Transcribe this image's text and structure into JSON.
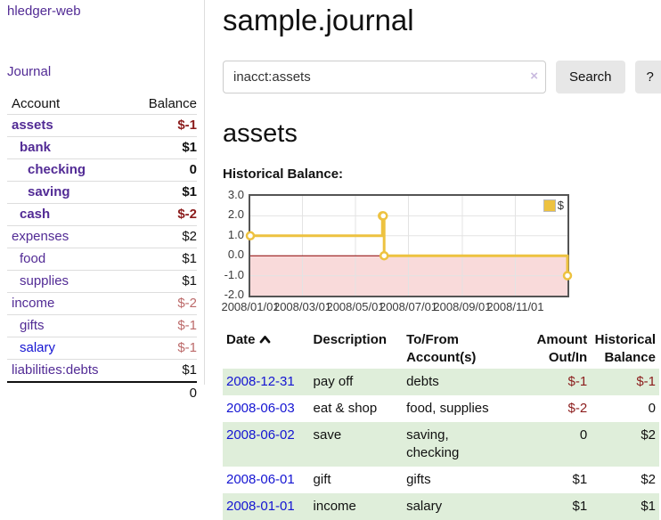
{
  "app": {
    "title": "hledger-web"
  },
  "sidebar": {
    "journal_link_label": "Journal",
    "accounts": {
      "header_account": "Account",
      "header_balance": "Balance",
      "rows": [
        {
          "name": "assets",
          "balance": "$-1",
          "depth": 1,
          "bold": true,
          "name_color": "purple",
          "balance_tone": "neg-strong"
        },
        {
          "name": "bank",
          "balance": "$1",
          "depth": 2,
          "bold": true,
          "name_color": "purple",
          "balance_tone": "normal"
        },
        {
          "name": "checking",
          "balance": "0",
          "depth": 3,
          "bold": true,
          "name_color": "purple",
          "balance_tone": "normal"
        },
        {
          "name": "saving",
          "balance": "$1",
          "depth": 3,
          "bold": true,
          "name_color": "purple",
          "balance_tone": "normal"
        },
        {
          "name": "cash",
          "balance": "$-2",
          "depth": 2,
          "bold": true,
          "name_color": "purple",
          "balance_tone": "neg-strong"
        },
        {
          "name": "expenses",
          "balance": "$2",
          "depth": 1,
          "bold": false,
          "name_color": "purple",
          "balance_tone": "normal"
        },
        {
          "name": "food",
          "balance": "$1",
          "depth": 2,
          "bold": false,
          "name_color": "purple",
          "balance_tone": "normal"
        },
        {
          "name": "supplies",
          "balance": "$1",
          "depth": 2,
          "bold": false,
          "name_color": "purple",
          "balance_tone": "normal"
        },
        {
          "name": "income",
          "balance": "$-2",
          "depth": 1,
          "bold": false,
          "name_color": "purple",
          "balance_tone": "neg-soft"
        },
        {
          "name": "gifts",
          "balance": "$-1",
          "depth": 2,
          "bold": false,
          "name_color": "purple",
          "balance_tone": "neg-soft"
        },
        {
          "name": "salary",
          "balance": "$-1",
          "depth": 2,
          "bold": false,
          "name_color": "blue",
          "balance_tone": "neg-soft"
        },
        {
          "name": "liabilities:debts",
          "balance": "$1",
          "depth": 1,
          "bold": false,
          "name_color": "purple",
          "balance_tone": "normal"
        }
      ],
      "total": "0"
    }
  },
  "main": {
    "title": "sample.journal",
    "search": {
      "value": "inacct:assets",
      "clear_icon": "×",
      "button_label": "Search",
      "help_label": "?"
    },
    "account_heading": "assets",
    "chart_label": "Historical Balance:"
  },
  "chart_data": {
    "type": "line",
    "line_style": "step",
    "title": "Historical Balance:",
    "series": [
      {
        "name": "$",
        "color": "#EDC240",
        "points": [
          [
            "2008-01-01",
            1
          ],
          [
            "2008-06-01",
            2
          ],
          [
            "2008-06-02",
            2
          ],
          [
            "2008-06-03",
            0
          ],
          [
            "2008-12-31",
            -1
          ]
        ]
      }
    ],
    "x_ticks": [
      {
        "date": "2008-01-01",
        "label": "2008/01/01"
      },
      {
        "date": "2008-03-01",
        "label": "2008/03/01"
      },
      {
        "date": "2008-05-01",
        "label": "2008/05/01"
      },
      {
        "date": "2008-07-01",
        "label": "2008/07/01"
      },
      {
        "date": "2008-09-01",
        "label": "2008/09/01"
      },
      {
        "date": "2008-11-01",
        "label": "2008/11/01"
      }
    ],
    "y_ticks": [
      {
        "value": 3,
        "label": "3.0"
      },
      {
        "value": 2,
        "label": "2.0"
      },
      {
        "value": 1,
        "label": "1.0"
      },
      {
        "value": 0,
        "label": "0.0"
      },
      {
        "value": -1,
        "label": "-1.0"
      },
      {
        "value": -2,
        "label": "-2.0"
      }
    ],
    "ylim": [
      -2,
      3
    ],
    "grid": true,
    "legend_position": "top-right",
    "legend_label": "$"
  },
  "register": {
    "columns": [
      {
        "label": "Date",
        "align": "left",
        "sort": "asc"
      },
      {
        "label": "Description",
        "align": "left"
      },
      {
        "label": "To/From\nAccount(s)",
        "align": "left"
      },
      {
        "label": "Amount\nOut/In",
        "align": "right"
      },
      {
        "label": "Historical\nBalance",
        "align": "right"
      }
    ],
    "rows": [
      {
        "date": "2008-12-31",
        "description": "pay off",
        "accounts": "debts",
        "amount": "$-1",
        "amount_negative": true,
        "balance": "$-1",
        "balance_negative": true
      },
      {
        "date": "2008-06-03",
        "description": "eat & shop",
        "accounts": "food, supplies",
        "amount": "$-2",
        "amount_negative": true,
        "balance": "0",
        "balance_negative": false
      },
      {
        "date": "2008-06-02",
        "description": "save",
        "accounts": "saving,\nchecking",
        "amount": "0",
        "amount_negative": false,
        "balance": "$2",
        "balance_negative": false
      },
      {
        "date": "2008-06-01",
        "description": "gift",
        "accounts": "gifts",
        "amount": "$1",
        "amount_negative": false,
        "balance": "$2",
        "balance_negative": false
      },
      {
        "date": "2008-01-01",
        "description": "income",
        "accounts": "salary",
        "amount": "$1",
        "amount_negative": false,
        "balance": "$1",
        "balance_negative": false
      }
    ]
  },
  "colors": {
    "link_purple": "#522b95",
    "link_blue": "#1414d2",
    "negative_strong": "#8b1c1c",
    "negative_soft": "#bc6a6a",
    "row_green": "#dfeeda",
    "chart_line": "#EDC240",
    "chart_negative_zone": "#f9dada",
    "chart_zero_line": "#8b0000",
    "chart_grid": "#e3e3e3",
    "chart_border": "#545454"
  }
}
